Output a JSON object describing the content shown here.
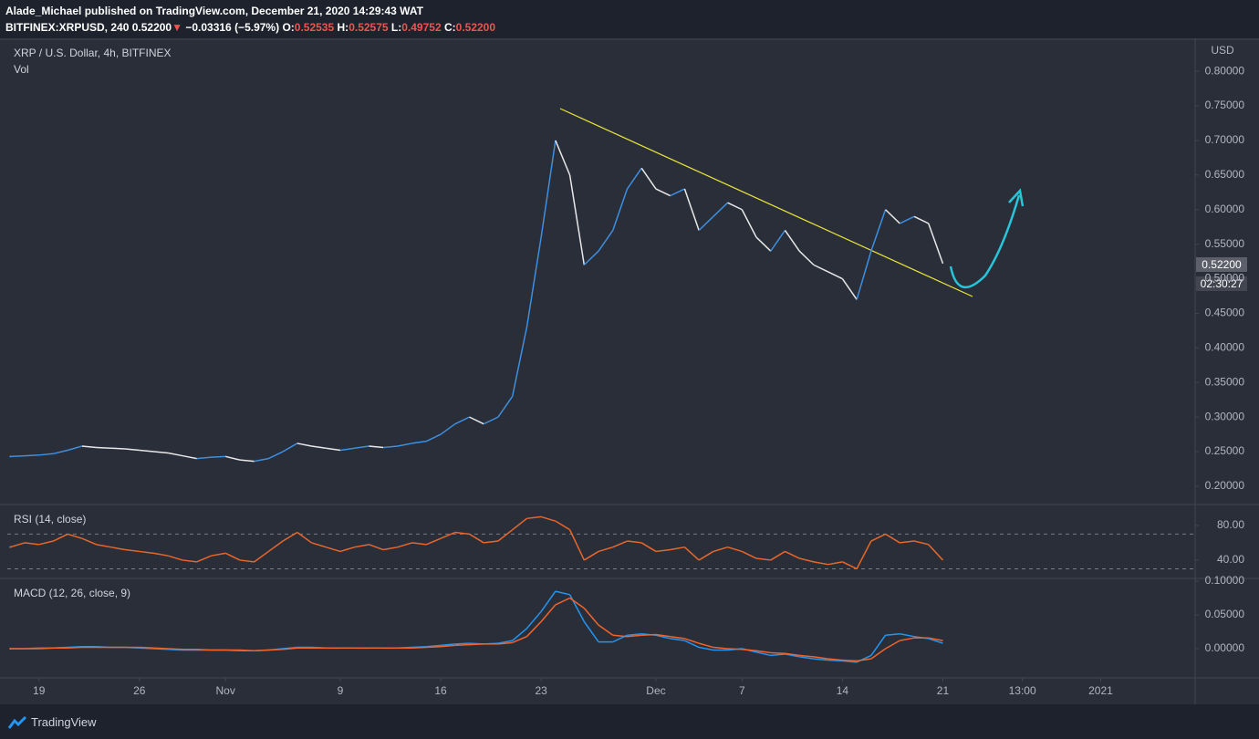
{
  "header": {
    "line1": "Alade_Michael published on TradingView.com, December 21, 2020 14:29:43 WAT",
    "symbol": "BITFINEX:XRPUSD, 240",
    "price": "0.52200",
    "change": "−0.03316 (−5.97%)",
    "open_label": "O:",
    "open": "0.52535",
    "high_label": "H:",
    "high": "0.52575",
    "low_label": "L:",
    "low": "0.49752",
    "close_label": "C:",
    "close": "0.52200"
  },
  "axis_unit": "USD",
  "countdown": "02:30:27",
  "footer": "TradingView",
  "chart_data": [
    {
      "type": "line",
      "title": "XRP / U.S. Dollar, 4h, BITFINEX",
      "subtitle": "Vol",
      "x": [
        "2020-10-17",
        "2020-10-18",
        "2020-10-19",
        "2020-10-20",
        "2020-10-21",
        "2020-10-22",
        "2020-10-23",
        "2020-10-24",
        "2020-10-25",
        "2020-10-26",
        "2020-10-27",
        "2020-10-28",
        "2020-10-29",
        "2020-10-30",
        "2020-10-31",
        "2020-11-01",
        "2020-11-02",
        "2020-11-03",
        "2020-11-04",
        "2020-11-05",
        "2020-11-06",
        "2020-11-07",
        "2020-11-08",
        "2020-11-09",
        "2020-11-10",
        "2020-11-11",
        "2020-11-12",
        "2020-11-13",
        "2020-11-14",
        "2020-11-15",
        "2020-11-16",
        "2020-11-17",
        "2020-11-18",
        "2020-11-19",
        "2020-11-20",
        "2020-11-21",
        "2020-11-22",
        "2020-11-23",
        "2020-11-24",
        "2020-11-25",
        "2020-11-26",
        "2020-11-27",
        "2020-11-28",
        "2020-11-29",
        "2020-11-30",
        "2020-12-01",
        "2020-12-02",
        "2020-12-03",
        "2020-12-04",
        "2020-12-05",
        "2020-12-06",
        "2020-12-07",
        "2020-12-08",
        "2020-12-09",
        "2020-12-10",
        "2020-12-11",
        "2020-12-12",
        "2020-12-13",
        "2020-12-14",
        "2020-12-15",
        "2020-12-16",
        "2020-12-17",
        "2020-12-18",
        "2020-12-19",
        "2020-12-20",
        "2020-12-21"
      ],
      "values": [
        0.243,
        0.244,
        0.245,
        0.247,
        0.252,
        0.258,
        0.256,
        0.255,
        0.254,
        0.252,
        0.25,
        0.248,
        0.244,
        0.24,
        0.242,
        0.243,
        0.238,
        0.236,
        0.24,
        0.25,
        0.262,
        0.258,
        0.255,
        0.252,
        0.255,
        0.258,
        0.256,
        0.258,
        0.262,
        0.265,
        0.275,
        0.29,
        0.3,
        0.29,
        0.3,
        0.33,
        0.43,
        0.56,
        0.7,
        0.65,
        0.52,
        0.54,
        0.57,
        0.63,
        0.66,
        0.63,
        0.62,
        0.63,
        0.57,
        0.59,
        0.61,
        0.6,
        0.56,
        0.54,
        0.57,
        0.54,
        0.52,
        0.51,
        0.5,
        0.47,
        0.54,
        0.6,
        0.58,
        0.59,
        0.58,
        0.522
      ],
      "up_color": "#3d8fe0",
      "down_color": "#e8e8e8",
      "ylim": [
        0.1735,
        0.8464
      ],
      "yticks": [
        {
          "value": 0.2,
          "label": "0.20000"
        },
        {
          "value": 0.25,
          "label": "0.25000"
        },
        {
          "value": 0.3,
          "label": "0.30000"
        },
        {
          "value": 0.35,
          "label": "0.35000"
        },
        {
          "value": 0.4,
          "label": "0.40000"
        },
        {
          "value": 0.45,
          "label": "0.45000"
        },
        {
          "value": 0.5,
          "label": "0.50000"
        },
        {
          "value": 0.55,
          "label": "0.55000"
        },
        {
          "value": 0.6,
          "label": "0.60000"
        },
        {
          "value": 0.65,
          "label": "0.65000"
        },
        {
          "value": 0.7,
          "label": "0.70000"
        },
        {
          "value": 0.75,
          "label": "0.75000"
        },
        {
          "value": 0.8,
          "label": "0.80000"
        }
      ],
      "xlim": [
        "2020-10-16T19:00:00Z",
        "2021-01-07T14:00:00Z"
      ],
      "xticks": [
        {
          "value": "2020-10-19",
          "label": "19"
        },
        {
          "value": "2020-10-26",
          "label": "26"
        },
        {
          "value": "2020-11-01",
          "label": "Nov"
        },
        {
          "value": "2020-11-09",
          "label": "9"
        },
        {
          "value": "2020-11-16",
          "label": "16"
        },
        {
          "value": "2020-11-23",
          "label": "23"
        },
        {
          "value": "2020-12-01",
          "label": "Dec"
        },
        {
          "value": "2020-12-07",
          "label": "7"
        },
        {
          "value": "2020-12-14",
          "label": "14"
        },
        {
          "value": "2020-12-21",
          "label": "21"
        },
        {
          "value": "2020-12-26T13:00:00Z",
          "label": "13:00"
        },
        {
          "value": "2021-01-01",
          "label": "2021"
        }
      ]
    },
    {
      "type": "line",
      "title": "RSI (14, close)",
      "color": "#e8672b",
      "values": [
        55,
        60,
        58,
        62,
        70,
        65,
        58,
        55,
        52,
        50,
        48,
        45,
        40,
        38,
        45,
        48,
        40,
        38,
        50,
        62,
        72,
        60,
        55,
        50,
        55,
        58,
        52,
        55,
        60,
        58,
        65,
        72,
        70,
        60,
        62,
        75,
        88,
        90,
        85,
        75,
        40,
        50,
        55,
        62,
        60,
        50,
        52,
        55,
        40,
        50,
        55,
        50,
        42,
        40,
        50,
        42,
        38,
        35,
        38,
        30,
        62,
        70,
        60,
        62,
        58,
        40
      ],
      "ylim": [
        21,
        102
      ],
      "yticks": [
        {
          "value": 80,
          "label": "80.00"
        },
        {
          "value": 40,
          "label": "40.00"
        }
      ],
      "bands": [
        70,
        30
      ]
    },
    {
      "type": "line",
      "title": "MACD (12, 26, close, 9)",
      "series": [
        {
          "color": "#2196f3",
          "values": [
            0.0,
            0.0,
            0.001,
            0.001,
            0.002,
            0.003,
            0.003,
            0.002,
            0.002,
            0.001,
            0.0,
            -0.001,
            -0.002,
            -0.002,
            -0.002,
            -0.002,
            -0.003,
            -0.003,
            -0.002,
            0.0,
            0.002,
            0.002,
            0.001,
            0.001,
            0.001,
            0.001,
            0.001,
            0.001,
            0.002,
            0.003,
            0.005,
            0.007,
            0.008,
            0.007,
            0.008,
            0.012,
            0.03,
            0.055,
            0.085,
            0.08,
            0.04,
            0.01,
            0.01,
            0.02,
            0.022,
            0.02,
            0.015,
            0.012,
            0.002,
            -0.002,
            -0.002,
            0.0,
            -0.005,
            -0.01,
            -0.008,
            -0.012,
            -0.015,
            -0.017,
            -0.018,
            -0.02,
            -0.01,
            0.02,
            0.022,
            0.018,
            0.015,
            0.008
          ]
        },
        {
          "color": "#f0642b",
          "values": [
            0.0,
            0.0,
            0.0,
            0.001,
            0.001,
            0.002,
            0.002,
            0.002,
            0.002,
            0.002,
            0.001,
            0.0,
            -0.001,
            -0.001,
            -0.002,
            -0.002,
            -0.002,
            -0.003,
            -0.002,
            -0.001,
            0.001,
            0.001,
            0.001,
            0.001,
            0.001,
            0.001,
            0.001,
            0.001,
            0.001,
            0.002,
            0.003,
            0.005,
            0.006,
            0.007,
            0.007,
            0.009,
            0.018,
            0.04,
            0.065,
            0.075,
            0.06,
            0.035,
            0.02,
            0.018,
            0.02,
            0.021,
            0.018,
            0.015,
            0.008,
            0.002,
            0.0,
            -0.001,
            -0.003,
            -0.006,
            -0.007,
            -0.01,
            -0.012,
            -0.015,
            -0.017,
            -0.018,
            -0.015,
            0.0,
            0.012,
            0.016,
            0.016,
            0.012
          ]
        }
      ],
      "ylim": [
        -0.0432,
        0.1027
      ],
      "yticks": [
        {
          "value": 0.1,
          "label": "0.10000"
        },
        {
          "value": 0.05,
          "label": "0.05000"
        },
        {
          "value": 0,
          "label": "0.00000"
        }
      ]
    }
  ]
}
